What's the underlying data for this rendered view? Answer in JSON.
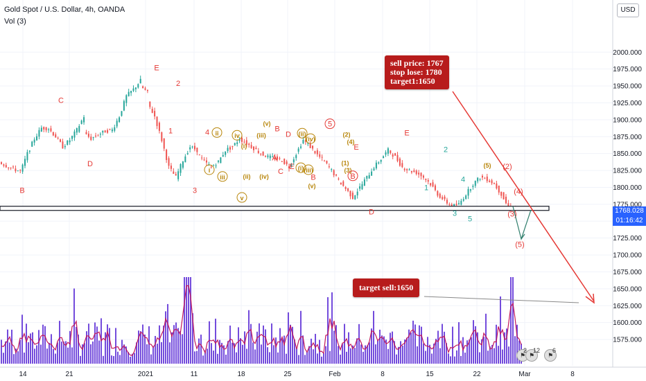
{
  "header": {
    "symbol_line": "Gold Spot / U.S. Dollar, 4h, OANDA",
    "indicator_line": "Vol (3)",
    "currency_button": "USD"
  },
  "price_tag": {
    "price": "1768.028",
    "countdown": "01:16:42"
  },
  "callouts": {
    "trade": [
      "sell price: 1767",
      "stop lose: 1780",
      "target1:1650"
    ],
    "target": "target sell:1650"
  },
  "event_flags": [
    {
      "icon": "us-flag-icon",
      "count": "2"
    },
    {
      "icon": "us-flag-icon",
      "count": "12"
    },
    {
      "icon": "us-flag-icon",
      "count": "6"
    }
  ],
  "colors": {
    "up": "#26a69a",
    "down": "#ef5350",
    "volume": "#5b2bd6",
    "volume_ma": "#c2185b",
    "wave_red": "#e53935",
    "wave_teal": "#26a69a",
    "wave_gold": "#b8860b",
    "arrow": "#e53935",
    "support": "#131722",
    "callout_bg": "#b71c1c",
    "price_tag": "#2962ff"
  },
  "chart_data": {
    "type": "candlestick",
    "y_axis": {
      "ylim": [
        1572,
        2030
      ],
      "ticks": [
        "2000.000",
        "1975.000",
        "1950.000",
        "1925.000",
        "1900.000",
        "1875.000",
        "1850.000",
        "1825.000",
        "1800.000",
        "1775.000",
        "1750.000",
        "1725.000",
        "1700.000",
        "1675.000",
        "1650.000",
        "1625.000",
        "1600.000",
        "1575.000"
      ]
    },
    "x_axis": {
      "ticks": [
        "14",
        "21",
        "2021",
        "11",
        "18",
        "25",
        "Feb",
        "8",
        "15",
        "22",
        "Mar",
        "8"
      ]
    },
    "price_path": [
      [
        1838,
        1832
      ],
      [
        1832,
        1827
      ],
      [
        1827,
        1824
      ],
      [
        1822,
        1850
      ],
      [
        1850,
        1872
      ],
      [
        1872,
        1888
      ],
      [
        1888,
        1887
      ],
      [
        1887,
        1875
      ],
      [
        1875,
        1860
      ],
      [
        1860,
        1870
      ],
      [
        1870,
        1885
      ],
      [
        1885,
        1905
      ],
      [
        1880,
        1872
      ],
      [
        1872,
        1878
      ],
      [
        1878,
        1883
      ],
      [
        1883,
        1885
      ],
      [
        1885,
        1905
      ],
      [
        1905,
        1935
      ],
      [
        1935,
        1945
      ],
      [
        1945,
        1958
      ],
      [
        1950,
        1940
      ],
      [
        1925,
        1905
      ],
      [
        1905,
        1870
      ],
      [
        1870,
        1830
      ],
      [
        1830,
        1815
      ],
      [
        1815,
        1840
      ],
      [
        1840,
        1860
      ],
      [
        1860,
        1855
      ],
      [
        1850,
        1838
      ],
      [
        1838,
        1830
      ],
      [
        1830,
        1838
      ],
      [
        1838,
        1855
      ],
      [
        1855,
        1860
      ],
      [
        1860,
        1872
      ],
      [
        1872,
        1865
      ],
      [
        1865,
        1858
      ],
      [
        1858,
        1850
      ],
      [
        1850,
        1845
      ],
      [
        1845,
        1843
      ],
      [
        1843,
        1840
      ],
      [
        1840,
        1830
      ],
      [
        1830,
        1850
      ],
      [
        1850,
        1870
      ],
      [
        1870,
        1860
      ],
      [
        1860,
        1848
      ],
      [
        1848,
        1838
      ],
      [
        1838,
        1825
      ],
      [
        1825,
        1810
      ],
      [
        1810,
        1798
      ],
      [
        1798,
        1785
      ],
      [
        1785,
        1800
      ],
      [
        1800,
        1815
      ],
      [
        1815,
        1830
      ],
      [
        1830,
        1842
      ],
      [
        1842,
        1855
      ],
      [
        1855,
        1845
      ],
      [
        1845,
        1830
      ],
      [
        1830,
        1825
      ],
      [
        1825,
        1822
      ],
      [
        1822,
        1815
      ],
      [
        1815,
        1805
      ],
      [
        1805,
        1790
      ],
      [
        1790,
        1780
      ],
      [
        1780,
        1772
      ],
      [
        1772,
        1775
      ],
      [
        1775,
        1790
      ],
      [
        1790,
        1805
      ],
      [
        1805,
        1815
      ],
      [
        1815,
        1812
      ],
      [
        1812,
        1805
      ],
      [
        1805,
        1790
      ],
      [
        1790,
        1770
      ],
      [
        1770,
        1768
      ]
    ],
    "support_line": 1770,
    "wave_labels": [
      {
        "t": "B",
        "x": 32,
        "y": 1792,
        "c": "red"
      },
      {
        "t": "C",
        "x": 88,
        "y": 1925,
        "c": "red"
      },
      {
        "t": "D",
        "x": 130,
        "y": 1831,
        "c": "red"
      },
      {
        "t": "E",
        "x": 226,
        "y": 1973,
        "c": "red"
      },
      {
        "t": "2",
        "x": 257,
        "y": 1950,
        "c": "red"
      },
      {
        "t": "1",
        "x": 246,
        "y": 1880,
        "c": "red"
      },
      {
        "t": "3",
        "x": 281,
        "y": 1792,
        "c": "red"
      },
      {
        "t": "4",
        "x": 299,
        "y": 1878,
        "c": "red"
      },
      {
        "t": "ii",
        "x": 313,
        "y": 1877,
        "c": "gold",
        "r": true
      },
      {
        "t": "iv",
        "x": 342,
        "y": 1873,
        "c": "gold",
        "r": true
      },
      {
        "t": "(i)",
        "x": 352,
        "y": 1858,
        "c": "gold"
      },
      {
        "t": "(iii)",
        "x": 377,
        "y": 1874,
        "c": "gold"
      },
      {
        "t": "(v)",
        "x": 385,
        "y": 1891,
        "c": "gold"
      },
      {
        "t": "B",
        "x": 400,
        "y": 1883,
        "c": "red"
      },
      {
        "t": "D",
        "x": 416,
        "y": 1875,
        "c": "red"
      },
      {
        "t": "i",
        "x": 302,
        "y": 1822,
        "c": "gold",
        "r": true
      },
      {
        "t": "iii",
        "x": 321,
        "y": 1812,
        "c": "gold",
        "r": true
      },
      {
        "t": "(ii)",
        "x": 356,
        "y": 1813,
        "c": "gold"
      },
      {
        "t": "(iv)",
        "x": 381,
        "y": 1813,
        "c": "gold"
      },
      {
        "t": "v",
        "x": 349,
        "y": 1781,
        "c": "gold",
        "r": true
      },
      {
        "t": "A",
        "x": 396,
        "y": 1840,
        "c": "red"
      },
      {
        "t": "C",
        "x": 405,
        "y": 1820,
        "c": "red"
      },
      {
        "t": "E",
        "x": 421,
        "y": 1827,
        "c": "red"
      },
      {
        "t": "(ii)",
        "x": 436,
        "y": 1876,
        "c": "gold",
        "r": true
      },
      {
        "t": "(iv)",
        "x": 448,
        "y": 1868,
        "c": "gold",
        "r": true
      },
      {
        "t": "(i)",
        "x": 434,
        "y": 1825,
        "c": "gold",
        "r": true
      },
      {
        "t": "(iii)",
        "x": 445,
        "y": 1822,
        "c": "gold",
        "r": true
      },
      {
        "t": "(v)",
        "x": 450,
        "y": 1799,
        "c": "gold"
      },
      {
        "t": "B",
        "x": 452,
        "y": 1811,
        "c": "red"
      },
      {
        "t": "5",
        "x": 476,
        "y": 1890,
        "c": "red",
        "r": true
      },
      {
        "t": "(2)",
        "x": 500,
        "y": 1875,
        "c": "gold"
      },
      {
        "t": "(4)",
        "x": 506,
        "y": 1864,
        "c": "gold"
      },
      {
        "t": "E",
        "x": 514,
        "y": 1856,
        "c": "red"
      },
      {
        "t": "(1)",
        "x": 498,
        "y": 1833,
        "c": "gold"
      },
      {
        "t": "(3)",
        "x": 502,
        "y": 1822,
        "c": "gold"
      },
      {
        "t": "B",
        "x": 509,
        "y": 1813,
        "c": "red",
        "r": true
      },
      {
        "t": "E",
        "x": 587,
        "y": 1877,
        "c": "red"
      },
      {
        "t": "D",
        "x": 536,
        "y": 1760,
        "c": "red"
      },
      {
        "t": "2",
        "x": 643,
        "y": 1852,
        "c": "teal"
      },
      {
        "t": "1",
        "x": 615,
        "y": 1796,
        "c": "teal"
      },
      {
        "t": "4",
        "x": 668,
        "y": 1808,
        "c": "teal"
      },
      {
        "t": "3",
        "x": 656,
        "y": 1758,
        "c": "teal"
      },
      {
        "t": "5",
        "x": 678,
        "y": 1750,
        "c": "teal"
      },
      {
        "t": "(5)",
        "x": 703,
        "y": 1829,
        "c": "gold"
      },
      {
        "t": "(2)",
        "x": 732,
        "y": 1827,
        "c": "red"
      },
      {
        "t": "(4)",
        "x": 748,
        "y": 1790,
        "c": "red"
      },
      {
        "t": "(3)",
        "x": 739,
        "y": 1757,
        "c": "red"
      },
      {
        "t": "(5)",
        "x": 750,
        "y": 1712,
        "c": "red"
      }
    ],
    "volume": {
      "ylim": [
        0,
        100
      ]
    }
  }
}
